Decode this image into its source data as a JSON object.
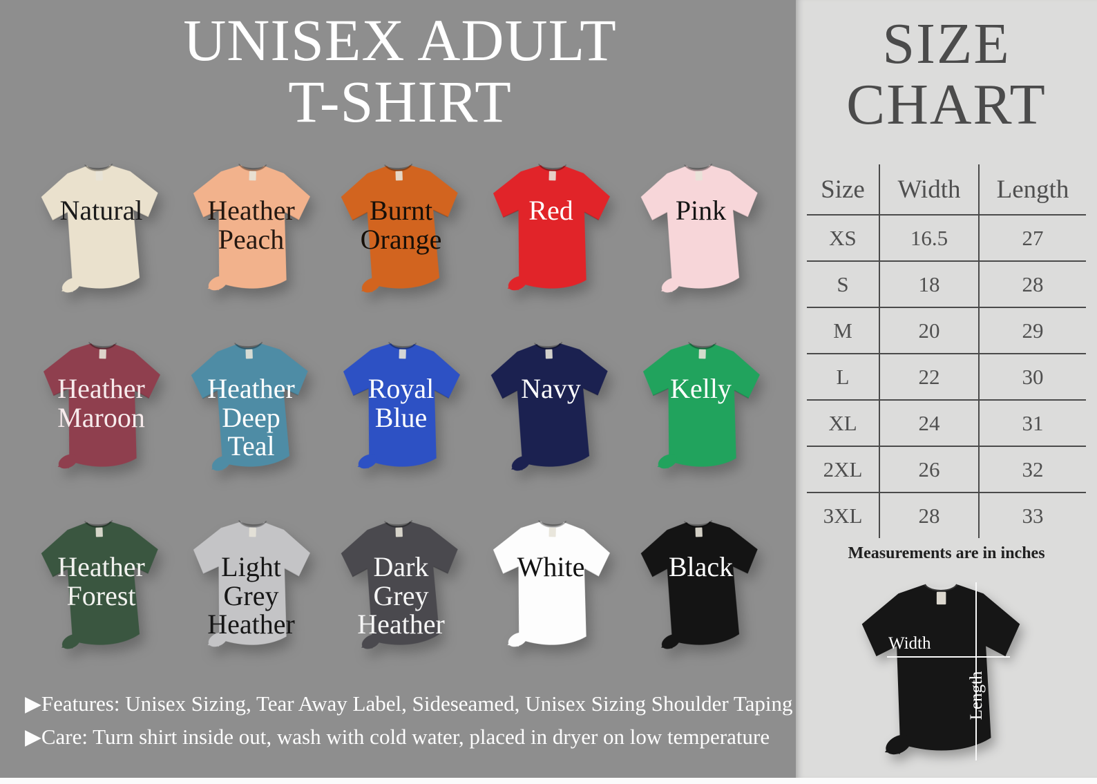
{
  "page": {
    "background": "#8e8e8e",
    "panel_background": "#dcdcdb",
    "bottom_strip_color": "#fbfbfb"
  },
  "title": {
    "line1": "UNISEX ADULT",
    "line2": "T-SHIRT"
  },
  "shirts": [
    {
      "name": "Natural",
      "lines": [
        "Natural"
      ],
      "color": "#eae1cd",
      "label_color": "#1a1a1a"
    },
    {
      "name": "Heather Peach",
      "lines": [
        "Heather",
        "Peach"
      ],
      "color": "#f2b28c",
      "label_color": "#241811"
    },
    {
      "name": "Burnt Orange",
      "lines": [
        "Burnt",
        "Orange"
      ],
      "color": "#d2641f",
      "label_color": "#160f08"
    },
    {
      "name": "Red",
      "lines": [
        "Red"
      ],
      "color": "#e12429",
      "label_color": "#ffffff"
    },
    {
      "name": "Pink",
      "lines": [
        "Pink"
      ],
      "color": "#f7d6d9",
      "label_color": "#141414"
    },
    {
      "name": "Heather Maroon",
      "lines": [
        "Heather",
        "Maroon"
      ],
      "color": "#8f3f4e",
      "label_color": "#f7ebec"
    },
    {
      "name": "Heather Deep Teal",
      "lines": [
        "Heather",
        "Deep",
        "Teal"
      ],
      "color": "#4e8ca5",
      "label_color": "#ffffff"
    },
    {
      "name": "Royal Blue",
      "lines": [
        "Royal",
        "Blue"
      ],
      "color": "#2d51c4",
      "label_color": "#ffffff"
    },
    {
      "name": "Navy",
      "lines": [
        "Navy"
      ],
      "color": "#1b2150",
      "label_color": "#ffffff"
    },
    {
      "name": "Kelly",
      "lines": [
        "Kelly"
      ],
      "color": "#21a35d",
      "label_color": "#ffffff"
    },
    {
      "name": "Heather Forest",
      "lines": [
        "Heather",
        "Forest"
      ],
      "color": "#3a5640",
      "label_color": "#f2f2ef"
    },
    {
      "name": "Light Grey Heather",
      "lines": [
        "Light",
        "Grey",
        "Heather"
      ],
      "color": "#c4c4c6",
      "label_color": "#161616"
    },
    {
      "name": "Dark Grey Heather",
      "lines": [
        "Dark",
        "Grey",
        "Heather"
      ],
      "color": "#4a494e",
      "label_color": "#f5f5f5"
    },
    {
      "name": "White",
      "lines": [
        "White"
      ],
      "color": "#fdfdfd",
      "label_color": "#111111"
    },
    {
      "name": "Black",
      "lines": [
        "Black"
      ],
      "color": "#141414",
      "label_color": "#ffffff"
    }
  ],
  "footer": {
    "features_line": "▶Features: Unisex Sizing, Tear Away Label, Sideseamed, Unisex Sizing Shoulder Taping",
    "care_line": "▶Care: Turn shirt inside out, wash with cold water, placed in dryer on low temperature"
  },
  "size_chart": {
    "title_line1": "SIZE",
    "title_line2": "CHART",
    "columns": [
      "Size",
      "Width",
      "Length"
    ],
    "rows": [
      [
        "XS",
        "16.5",
        "27"
      ],
      [
        "S",
        "18",
        "28"
      ],
      [
        "M",
        "20",
        "29"
      ],
      [
        "L",
        "22",
        "30"
      ],
      [
        "XL",
        "24",
        "31"
      ],
      [
        "2XL",
        "26",
        "32"
      ],
      [
        "3XL",
        "28",
        "33"
      ]
    ],
    "note": "Measurements are in inches",
    "measure_shirt": {
      "color": "#161616",
      "width_label": "Width",
      "length_label": "Length"
    }
  }
}
